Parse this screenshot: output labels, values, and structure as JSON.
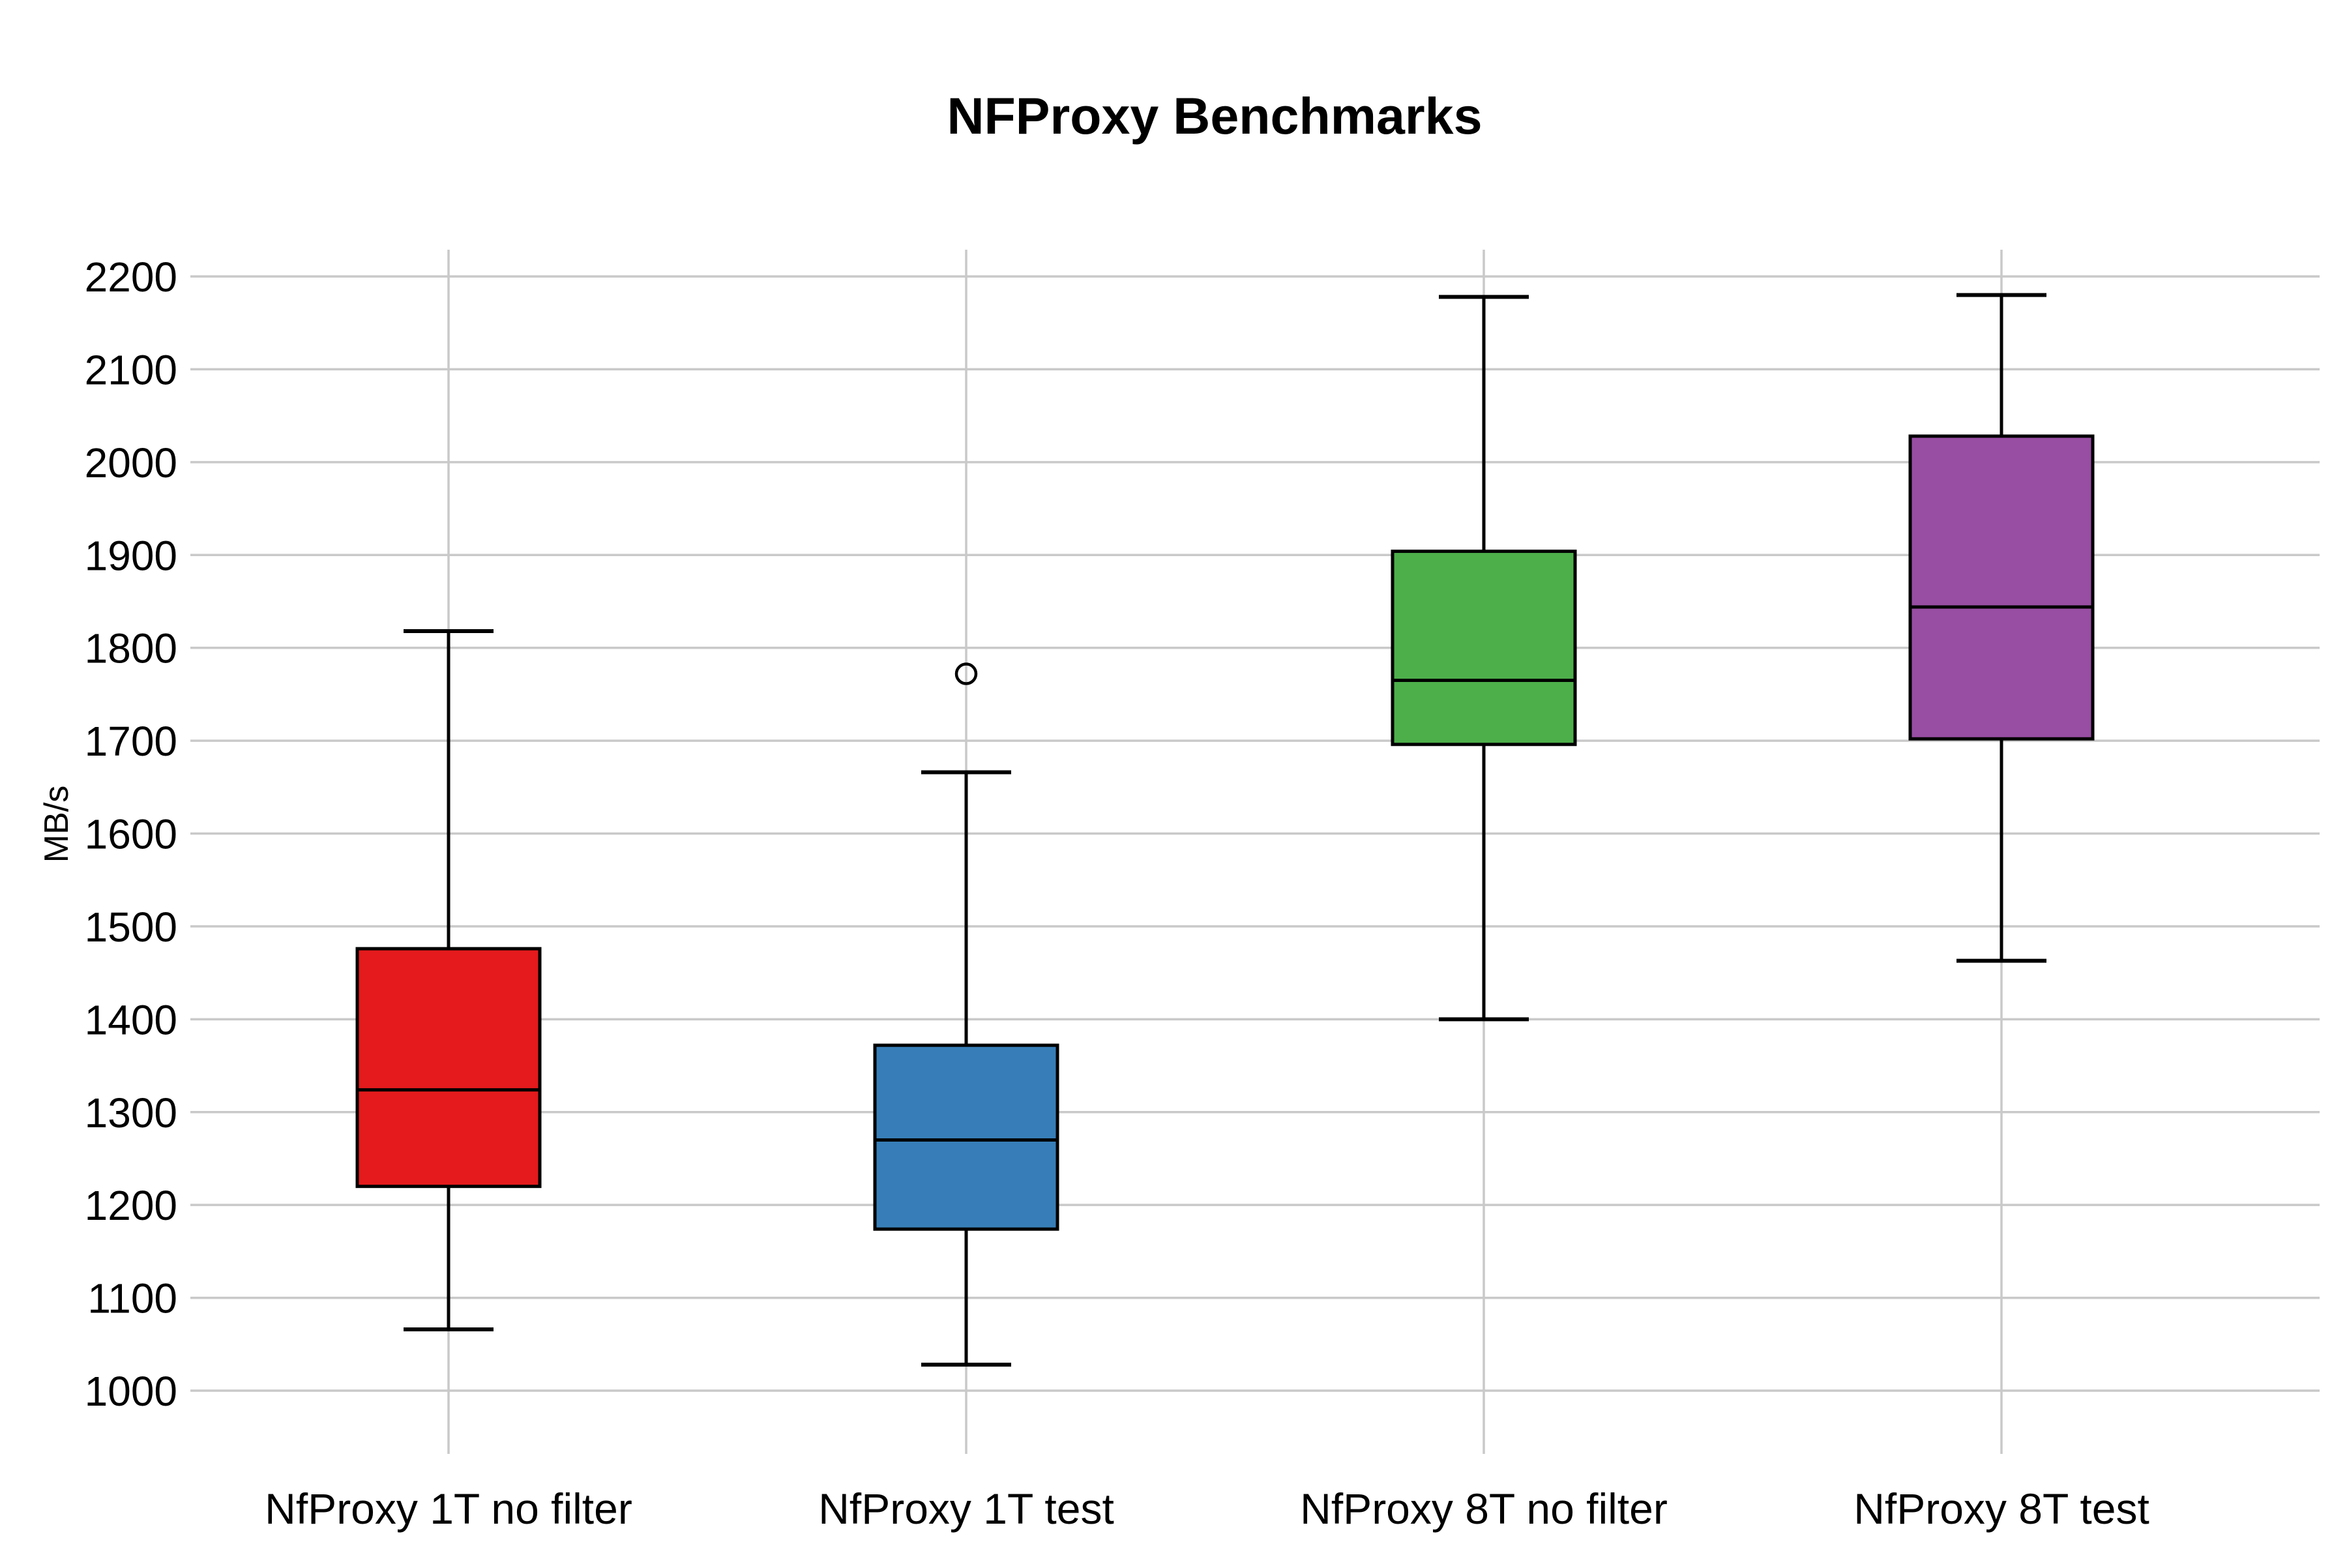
{
  "page": {
    "background": "#ffffff"
  },
  "chart_data": {
    "type": "box",
    "title": "NFProxy Benchmarks",
    "ylabel": "MB/s",
    "xlabel": "",
    "ylim": [
      930,
      2230
    ],
    "yticks": [
      2200,
      2100,
      2000,
      1900,
      1800,
      1700,
      1600,
      1500,
      1400,
      1300,
      1200,
      1100,
      1000
    ],
    "grid": "light gray horizontal gridlines per 100 MB/s plus one vertical gridline per category",
    "legend": "none",
    "categories": [
      "NfProxy 1T no filter",
      "NfProxy 1T test",
      "NfProxy 8T no filter",
      "NfProxy 8T test"
    ],
    "series": [
      {
        "name": "NfProxy 1T no filter",
        "color": "#e41a1c",
        "whisker_low": 1066,
        "q1": 1220,
        "median": 1324,
        "q3": 1476,
        "whisker_high": 1818,
        "outliers": []
      },
      {
        "name": "NfProxy 1T test",
        "color": "#377eb8",
        "whisker_low": 1028,
        "q1": 1174,
        "median": 1270,
        "q3": 1372,
        "whisker_high": 1666,
        "outliers": [
          1772
        ]
      },
      {
        "name": "NfProxy 8T no filter",
        "color": "#4daf4a",
        "whisker_low": 1400,
        "q1": 1696,
        "median": 1765,
        "q3": 1904,
        "whisker_high": 2178,
        "outliers": []
      },
      {
        "name": "NfProxy 8T test",
        "color": "#984ea3",
        "whisker_low": 1463,
        "q1": 1702,
        "median": 1844,
        "q3": 2028,
        "whisker_high": 2180,
        "outliers": []
      }
    ],
    "colors": {
      "grid": "#c9c9c9",
      "box_edge": "#000000",
      "median_line": "#000000",
      "whisker": "#000000",
      "outlier_stroke": "#000000",
      "text": "#000000",
      "background": "#ffffff"
    }
  }
}
